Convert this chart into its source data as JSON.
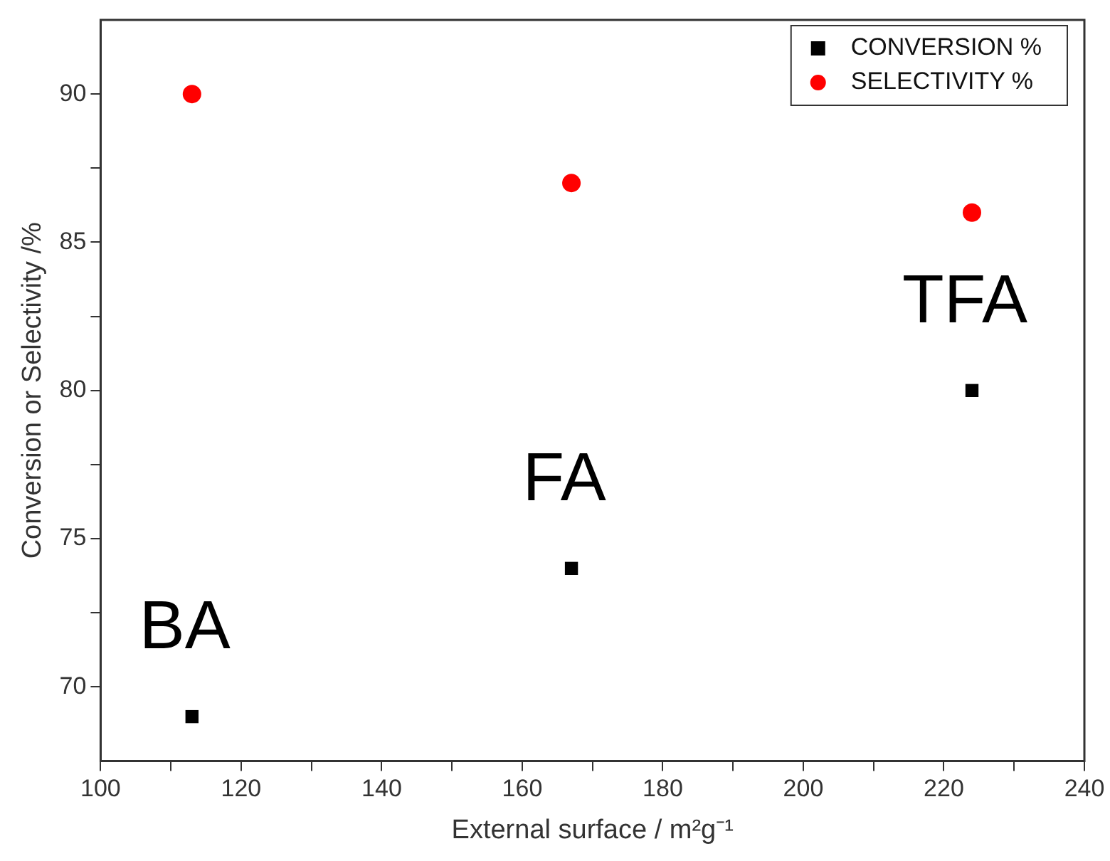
{
  "chart_data": {
    "type": "scatter",
    "xlabel": "External surface / m²g⁻¹",
    "ylabel": "Conversion or Selectivity /%",
    "series": [
      {
        "name": "CONVERSION %",
        "color": "#000000",
        "marker": "square",
        "x": [
          113,
          167,
          224
        ],
        "values": [
          69,
          74,
          80
        ]
      },
      {
        "name": "SELECTIVITY %",
        "color": "#ff0000",
        "marker": "circle",
        "x": [
          113,
          167,
          224
        ],
        "values": [
          90,
          87,
          86
        ]
      }
    ],
    "annotations": [
      {
        "text": "BA",
        "x": 113,
        "y": 69
      },
      {
        "text": "FA",
        "x": 167,
        "y": 74
      },
      {
        "text": "TFA",
        "x": 224,
        "y": 80
      }
    ],
    "xlim": [
      100,
      240
    ],
    "xticks": [
      100,
      {
        "value": 110,
        "label": null
      },
      120,
      {
        "value": 130,
        "label": null
      },
      140,
      {
        "value": 150,
        "label": null
      },
      160,
      {
        "value": 170,
        "label": null
      },
      180,
      {
        "value": 190,
        "label": null
      },
      200,
      {
        "value": 210,
        "label": null
      },
      220,
      {
        "value": 230,
        "label": null
      },
      240
    ],
    "ylim": [
      67.5,
      92.5
    ],
    "yticks": [
      70,
      {
        "value": 72.5,
        "label": null
      },
      75,
      {
        "value": 77.5,
        "label": null
      },
      80,
      {
        "value": 82.5,
        "label": null
      },
      85,
      {
        "value": 87.5,
        "label": null
      },
      90
    ],
    "grid": false,
    "legend": "top right"
  }
}
